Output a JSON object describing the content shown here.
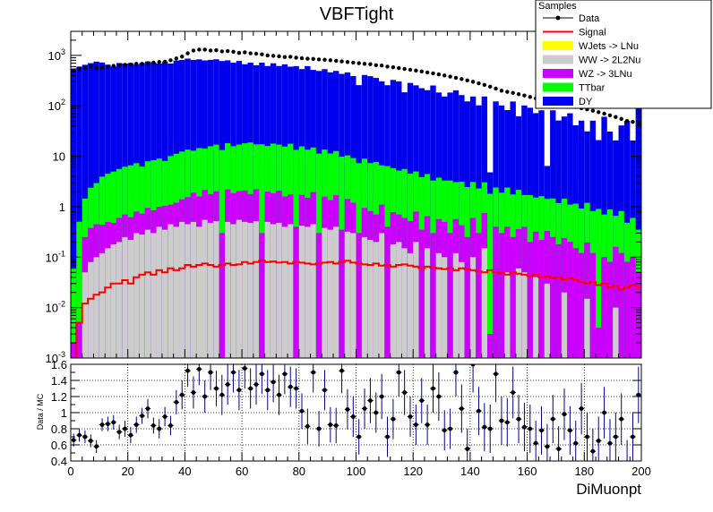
{
  "chart_data": [
    {
      "type": "area",
      "title": "VBFTight",
      "xlabel": "DiMuonpt",
      "ylabel": "",
      "yscale": "log",
      "xlim": [
        0,
        200
      ],
      "ylim": [
        0.001,
        3000
      ],
      "ytick_labels": [
        "10^{-3}",
        "10^{-2}",
        "10^{-1}",
        "1",
        "10",
        "10^{2}",
        "10^{3}"
      ],
      "xtick_labels": [
        "0",
        "20",
        "40",
        "60",
        "80",
        "100",
        "120",
        "140",
        "160",
        "180",
        "200"
      ],
      "legend": {
        "header": "Samples",
        "position": "top-right",
        "entries": [
          "Data",
          "Signal",
          "WJets -> LNu",
          "WW -> 2L2Nu",
          "WZ -> 3LNu",
          "TTbar",
          "DY"
        ]
      },
      "colors": {
        "DY": "#0000ee",
        "TTbar": "#00ff00",
        "WZ": "#cc00ff",
        "WW": "#cccccc",
        "WJets": "#ffff00",
        "Signal": "#ff0000",
        "Data": "#000000"
      },
      "bin_width": 2,
      "x": [
        1,
        3,
        5,
        7,
        9,
        11,
        13,
        15,
        17,
        19,
        21,
        23,
        25,
        27,
        29,
        31,
        33,
        35,
        37,
        39,
        41,
        43,
        45,
        47,
        49,
        51,
        53,
        55,
        57,
        59,
        61,
        63,
        65,
        67,
        69,
        71,
        73,
        75,
        77,
        79,
        81,
        83,
        85,
        87,
        89,
        91,
        93,
        95,
        97,
        99,
        101,
        103,
        105,
        107,
        109,
        111,
        113,
        115,
        117,
        119,
        121,
        123,
        125,
        127,
        129,
        131,
        133,
        135,
        137,
        139,
        141,
        143,
        145,
        147,
        149,
        151,
        153,
        155,
        157,
        159,
        161,
        163,
        165,
        167,
        169,
        171,
        173,
        175,
        177,
        179,
        181,
        183,
        185,
        187,
        189,
        191,
        193,
        195,
        197,
        199
      ],
      "series": [
        {
          "name": "DY",
          "values": [
            550,
            600,
            650,
            700,
            750,
            720,
            650,
            600,
            700,
            680,
            700,
            650,
            700,
            750,
            720,
            680,
            750,
            680,
            780,
            800,
            850,
            800,
            820,
            780,
            800,
            820,
            760,
            780,
            700,
            760,
            650,
            700,
            620,
            700,
            600,
            680,
            600,
            650,
            580,
            600,
            520,
            600,
            500,
            480,
            520,
            450,
            480,
            420,
            450,
            380,
            250,
            400,
            380,
            350,
            300,
            250,
            320,
            300,
            180,
            280,
            250,
            220,
            200,
            250,
            180,
            150,
            180,
            200,
            160,
            120,
            150,
            100,
            150,
            3,
            120,
            100,
            80,
            120,
            60,
            100,
            90,
            70,
            80,
            5,
            80,
            50,
            60,
            70,
            40,
            50,
            30,
            50,
            20,
            60,
            30,
            20,
            40,
            50,
            20,
            100
          ]
        },
        {
          "name": "TTbar",
          "values": [
            0.06,
            0.5,
            1.2,
            2.0,
            2.5,
            3.5,
            4.0,
            4.5,
            5.0,
            5.5,
            6.0,
            6.5,
            5.5,
            7.0,
            7.5,
            8.0,
            7.0,
            9.0,
            10,
            11,
            12,
            11,
            13,
            12,
            14,
            15,
            13,
            16,
            14,
            15,
            16,
            17,
            15,
            17,
            14,
            16,
            15,
            14,
            16,
            13,
            14,
            12,
            13,
            11,
            12,
            10,
            11,
            9.5,
            9,
            8,
            7,
            8,
            6.5,
            7,
            5.5,
            6,
            5,
            4.5,
            5,
            4,
            4.2,
            3.5,
            3.8,
            3,
            3.2,
            2.8,
            3,
            2.5,
            2.7,
            2.2,
            2.5,
            2,
            2.3,
            1.8,
            2,
            1.6,
            2,
            1.5,
            1.8,
            1.3,
            1.5,
            1.2,
            1.4,
            1.1,
            1.2,
            1,
            1.2,
            0.9,
            1,
            0.8,
            1,
            0.7,
            0.9,
            0.6,
            0.8,
            0.5,
            0.7,
            0.4,
            0.5,
            0.3
          ]
        },
        {
          "name": "WZ -> 3LNu",
          "values": [
            0.001,
            0.004,
            0.2,
            0.3,
            0.35,
            0.32,
            0.35,
            0.3,
            0.4,
            0.45,
            0.4,
            0.5,
            0.45,
            0.6,
            0.55,
            0.6,
            0.7,
            0.65,
            0.8,
            0.9,
            1.1,
            1.4,
            1.2,
            1.6,
            1.3,
            1.5,
            0.3,
            1.7,
            1.4,
            1.5,
            1.6,
            1.3,
            1.7,
            0.3,
            1.5,
            1.4,
            1.6,
            1.2,
            1.3,
            0.4,
            1.3,
            1.1,
            1.5,
            0.3,
            1.2,
            1.0,
            1.3,
            0.35,
            1.1,
            0.9,
            0.3,
            0.7,
            0.6,
            0.5,
            0.8,
            0.4,
            0.6,
            0.5,
            0.45,
            0.4,
            0.6,
            0.35,
            0.5,
            0.3,
            0.45,
            0.4,
            0.3,
            0.45,
            0.35,
            0.25,
            0.5,
            0.3,
            0.6,
            0.002,
            0.4,
            0.3,
            0.35,
            0.25,
            0.3,
            0.35,
            0.2,
            0.28,
            0.22,
            0.3,
            0.25,
            0.18,
            0.22,
            0.2,
            0.15,
            0.12,
            0.18,
            0.12,
            0.003,
            0.1,
            0.08,
            0.15,
            0.12,
            0.08,
            0.1,
            0.05
          ]
        },
        {
          "name": "WW -> 2L2Nu",
          "values": [
            0.001,
            0.001,
            0.05,
            0.08,
            0.1,
            0.12,
            0.15,
            0.18,
            0.2,
            0.25,
            0.22,
            0.3,
            0.28,
            0.35,
            0.3,
            0.4,
            0.35,
            0.45,
            0.4,
            0.5,
            0.45,
            0.5,
            0.4,
            0.55,
            0.48,
            0.52,
            0.001,
            0.5,
            0.45,
            0.55,
            0.5,
            0.48,
            0.52,
            0.001,
            0.5,
            0.45,
            0.48,
            0.4,
            0.45,
            0.001,
            0.42,
            0.4,
            0.45,
            0.001,
            0.38,
            0.35,
            0.4,
            0.001,
            0.32,
            0.3,
            0.001,
            0.25,
            0.22,
            0.2,
            0.3,
            0.001,
            0.18,
            0.2,
            0.15,
            0.12,
            0.2,
            0.001,
            0.15,
            0.001,
            0.12,
            0.1,
            0.001,
            0.12,
            0.08,
            0.001,
            0.1,
            0.001,
            0.15,
            0.001,
            0.001,
            0.001,
            0.05,
            0.001,
            0.06,
            0.05,
            0.001,
            0.04,
            0.001,
            0.03,
            0.001,
            0.001,
            0.02,
            0.001,
            0.001,
            0.001,
            0.015,
            0.001,
            0.001,
            0.001,
            0.001,
            0.01,
            0.001,
            0.001,
            0.001,
            0.001
          ]
        },
        {
          "name": "Signal",
          "values": [
            0.001,
            0.005,
            0.012,
            0.015,
            0.018,
            0.02,
            0.025,
            0.03,
            0.03,
            0.035,
            0.03,
            0.04,
            0.045,
            0.05,
            0.045,
            0.055,
            0.05,
            0.06,
            0.055,
            0.06,
            0.07,
            0.065,
            0.07,
            0.075,
            0.07,
            0.065,
            0.07,
            0.075,
            0.07,
            0.072,
            0.08,
            0.075,
            0.08,
            0.085,
            0.08,
            0.082,
            0.078,
            0.08,
            0.075,
            0.08,
            0.078,
            0.075,
            0.072,
            0.075,
            0.078,
            0.08,
            0.075,
            0.08,
            0.085,
            0.078,
            0.075,
            0.072,
            0.07,
            0.075,
            0.068,
            0.07,
            0.065,
            0.07,
            0.072,
            0.068,
            0.065,
            0.06,
            0.065,
            0.062,
            0.06,
            0.058,
            0.06,
            0.055,
            0.06,
            0.058,
            0.055,
            0.052,
            0.05,
            0.055,
            0.05,
            0.048,
            0.045,
            0.05,
            0.047,
            0.045,
            0.042,
            0.045,
            0.04,
            0.042,
            0.038,
            0.04,
            0.036,
            0.038,
            0.035,
            0.032,
            0.03,
            0.032,
            0.028,
            0.03,
            0.025,
            0.027,
            0.023,
            0.025,
            0.028,
            0.025
          ]
        },
        {
          "name": "Data",
          "values": [
            500,
            550,
            560,
            600,
            560,
            580,
            600,
            620,
            640,
            650,
            660,
            680,
            680,
            700,
            720,
            740,
            750,
            800,
            870,
            950,
            1100,
            1250,
            1300,
            1300,
            1250,
            1270,
            1200,
            1220,
            1180,
            1120,
            1150,
            1100,
            1080,
            1050,
            1000,
            980,
            960,
            930,
            940,
            900,
            880,
            860,
            850,
            830,
            820,
            800,
            780,
            760,
            740,
            720,
            700,
            680,
            670,
            640,
            630,
            600,
            580,
            560,
            540,
            520,
            500,
            480,
            460,
            440,
            420,
            400,
            380,
            360,
            340,
            320,
            300,
            280,
            260,
            240,
            220,
            200,
            190,
            180,
            170,
            160,
            150,
            140,
            130,
            125,
            120,
            115,
            110,
            100,
            95,
            90,
            85,
            80,
            75,
            70,
            65,
            60,
            55,
            50,
            48,
            45
          ]
        }
      ]
    },
    {
      "type": "scatter",
      "title": "",
      "xlabel": "",
      "ylabel": "Data / MC",
      "xlim": [
        0,
        200
      ],
      "ylim": [
        0.4,
        1.6
      ],
      "ytick_labels": [
        "0.4",
        "0.6",
        "0.8",
        "1",
        "1.2",
        "1.4",
        "1.6"
      ],
      "xtick_labels": [
        "0",
        "20",
        "40",
        "60",
        "80",
        "100",
        "120",
        "140",
        "160",
        "180",
        "200"
      ],
      "grid": true,
      "x": [
        1,
        3,
        5,
        7,
        9,
        11,
        13,
        15,
        17,
        19,
        21,
        23,
        25,
        27,
        29,
        31,
        33,
        35,
        37,
        39,
        41,
        43,
        45,
        47,
        49,
        51,
        53,
        55,
        57,
        59,
        61,
        63,
        65,
        67,
        69,
        71,
        73,
        75,
        77,
        79,
        81,
        83,
        85,
        87,
        89,
        91,
        93,
        95,
        97,
        99,
        101,
        103,
        105,
        107,
        109,
        111,
        113,
        115,
        117,
        119,
        121,
        123,
        125,
        127,
        129,
        131,
        133,
        135,
        137,
        139,
        141,
        143,
        145,
        147,
        149,
        151,
        153,
        155,
        157,
        159,
        161,
        163,
        165,
        167,
        169,
        171,
        173,
        175,
        177,
        179,
        181,
        183,
        185,
        187,
        189,
        191,
        193,
        195,
        197,
        199
      ],
      "values": [
        0.66,
        0.72,
        0.7,
        0.65,
        0.58,
        0.85,
        0.86,
        0.88,
        0.76,
        0.8,
        0.72,
        0.85,
        0.96,
        1.05,
        0.84,
        0.8,
        0.95,
        0.84,
        1.13,
        1.22,
        1.52,
        1.25,
        1.54,
        1.2,
        1.5,
        1.3,
        1.22,
        1.35,
        1.5,
        1.28,
        1.55,
        1.3,
        1.35,
        1.48,
        1.28,
        1.38,
        1.22,
        1.48,
        1.32,
        1.3,
        1.02,
        0.83,
        1.5,
        0.8,
        1.28,
        0.85,
        0.84,
        1.52,
        1.04,
        0.95,
        0.7,
        1.05,
        1.15,
        1.0,
        1.2,
        0.7,
        0.92,
        1.5,
        1.25,
        0.95,
        0.85,
        1.15,
        0.85,
        1.3,
        1.2,
        0.78,
        0.8,
        1.5,
        1.05,
        0.55,
        1.6,
        1.02,
        0.82,
        0.8,
        1.48,
        0.9,
        0.88,
        1.25,
        0.92,
        0.82,
        0.8,
        0.62,
        0.78,
        0.58,
        0.92,
        0.55,
        0.98,
        0.78,
        0.62,
        1.05,
        0.7,
        0.52,
        0.65,
        1.0,
        0.62,
        0.7,
        0.92,
        0.38,
        0.7,
        1.22
      ],
      "errors": [
        0.08,
        0.08,
        0.08,
        0.08,
        0.08,
        0.08,
        0.09,
        0.09,
        0.09,
        0.1,
        0.1,
        0.1,
        0.1,
        0.12,
        0.1,
        0.12,
        0.12,
        0.12,
        0.15,
        0.18,
        0.2,
        0.2,
        0.2,
        0.2,
        0.22,
        0.22,
        0.25,
        0.25,
        0.25,
        0.25,
        0.25,
        0.25,
        0.25,
        0.25,
        0.25,
        0.25,
        0.25,
        0.25,
        0.25,
        0.25,
        0.22,
        0.22,
        0.25,
        0.22,
        0.25,
        0.22,
        0.22,
        0.28,
        0.25,
        0.25,
        0.22,
        0.25,
        0.28,
        0.25,
        0.28,
        0.25,
        0.25,
        0.3,
        0.28,
        0.25,
        0.25,
        0.28,
        0.25,
        0.3,
        0.3,
        0.25,
        0.25,
        0.3,
        0.3,
        0.25,
        0.35,
        0.3,
        0.3,
        0.3,
        0.35,
        0.3,
        0.3,
        0.32,
        0.3,
        0.3,
        0.3,
        0.28,
        0.3,
        0.28,
        0.3,
        0.28,
        0.32,
        0.3,
        0.28,
        0.32,
        0.3,
        0.28,
        0.3,
        0.32,
        0.3,
        0.3,
        0.32,
        0.28,
        0.3,
        0.35
      ]
    }
  ]
}
